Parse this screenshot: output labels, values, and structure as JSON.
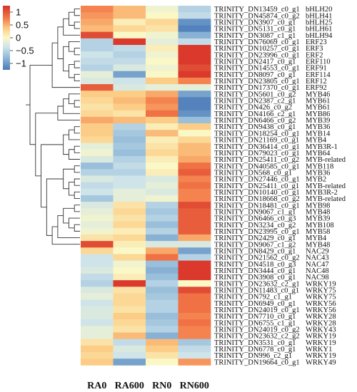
{
  "chart_data": {
    "type": "heatmap",
    "colorscale": [
      "#4a7ab8",
      "#94bcd9",
      "#cde3ea",
      "#fbf8c8",
      "#fccb83",
      "#f37d4a",
      "#d73027"
    ],
    "legend": {
      "ticks": [
        "1",
        "0.5",
        "0",
        "−0.5",
        "−1"
      ],
      "min": -1.25,
      "max": 1.25
    },
    "columns": [
      "RA0",
      "RA600",
      "RN0",
      "RN600"
    ],
    "rows": [
      {
        "id": "TRINITY_DN13459_c0_g1",
        "gene": "bHLH20",
        "values": [
          0.8,
          0.5,
          -0.1,
          -0.6
        ]
      },
      {
        "id": "TRINITY_DN45874_c0_g2",
        "gene": "bHLH41",
        "values": [
          0.7,
          0.5,
          0.0,
          -0.5
        ]
      },
      {
        "id": "TRINITY_DN3907_c0_g1",
        "gene": "bHLH25",
        "values": [
          0.6,
          0.1,
          0.3,
          -1.1
        ]
      },
      {
        "id": "TRINITY_DN5131_c0_g1",
        "gene": "bHLH61",
        "values": [
          0.5,
          0.3,
          0.2,
          -1.2
        ]
      },
      {
        "id": "TRINITY_DN3087_c1_g1",
        "gene": "bHLH94",
        "values": [
          1.1,
          0.0,
          -0.1,
          -0.9
        ]
      },
      {
        "id": "TRINITY_DN76069_c0_g1",
        "gene": "ERF23",
        "values": [
          -0.6,
          1.2,
          -0.2,
          -0.5
        ]
      },
      {
        "id": "TRINITY_DN10257_c0_g1",
        "gene": "ERF3",
        "values": [
          -0.6,
          -0.5,
          0.1,
          1.2
        ]
      },
      {
        "id": "TRINITY_DN23996_c0_g1",
        "gene": "ERF2",
        "values": [
          -0.4,
          -0.6,
          -0.1,
          1.2
        ]
      },
      {
        "id": "TRINITY_DN2417_c0_g1",
        "gene": "ERF110",
        "values": [
          -0.5,
          -0.5,
          0.0,
          1.2
        ]
      },
      {
        "id": "TRINITY_DN14553_c0_g1",
        "gene": "ERF91",
        "values": [
          -0.6,
          -0.3,
          -0.1,
          1.1
        ]
      },
      {
        "id": "TRINITY_DN8097_c0_g1",
        "gene": "ERF114",
        "values": [
          -0.2,
          -1.0,
          0.0,
          1.2
        ]
      },
      {
        "id": "TRINITY_DN23805_c0_g1",
        "gene": "ERF12",
        "values": [
          -0.3,
          -0.4,
          0.4,
          0.8
        ]
      },
      {
        "id": "TRINITY_DN17370_c0_g1",
        "gene": "ERF92",
        "values": [
          1.0,
          -0.3,
          -0.2,
          -0.2
        ]
      },
      {
        "id": "TRINITY_DN5601_c0_g2",
        "gene": "MYB46",
        "values": [
          0.4,
          0.4,
          0.6,
          -1.0
        ]
      },
      {
        "id": "TRINITY_DN2387_c2_g1",
        "gene": "MYB61",
        "values": [
          0.3,
          0.5,
          0.8,
          -1.2
        ]
      },
      {
        "id": "TRINITY_DN426_c0_g2",
        "gene": "MYB61",
        "values": [
          0.2,
          0.4,
          0.7,
          -1.2
        ]
      },
      {
        "id": "TRINITY_DN4166_c2_g1",
        "gene": "MYB86",
        "values": [
          0.3,
          0.2,
          0.9,
          -1.1
        ]
      },
      {
        "id": "TRINITY_DN6466_c0_g2",
        "gene": "MYB39",
        "values": [
          0.6,
          0.5,
          0.4,
          -0.8
        ]
      },
      {
        "id": "TRINITY_DN9438_c0_g1",
        "gene": "MYB36",
        "values": [
          0.4,
          -0.6,
          0.1,
          0.4
        ]
      },
      {
        "id": "TRINITY_DN18254_c0_g1",
        "gene": "MYB14",
        "values": [
          0.4,
          -0.7,
          0.5,
          0.0
        ]
      },
      {
        "id": "TRINITY_DN21169_c0_g1",
        "gene": "MYB4",
        "values": [
          0.3,
          -0.8,
          0.1,
          0.3
        ]
      },
      {
        "id": "TRINITY_DN36414_c0_g1",
        "gene": "MYB3R-1",
        "values": [
          -0.2,
          -0.7,
          0.2,
          0.5
        ]
      },
      {
        "id": "TRINITY_DN79023_c0_g1",
        "gene": "MYB64",
        "values": [
          -0.1,
          -0.8,
          0.3,
          0.5
        ]
      },
      {
        "id": "TRINITY_DN25411_c0_g2",
        "gene": "MYB-related",
        "values": [
          -0.3,
          -0.6,
          0.1,
          0.6
        ]
      },
      {
        "id": "TRINITY_DN40585_c0_g1",
        "gene": "MYB118",
        "values": [
          -0.8,
          -0.5,
          0.0,
          0.9
        ]
      },
      {
        "id": "TRINITY_DN568_c0_g1",
        "gene": "MYB36",
        "values": [
          -0.6,
          -0.6,
          0.1,
          1.0
        ]
      },
      {
        "id": "TRINITY_DN27446_c0_g1",
        "gene": "MYB2",
        "values": [
          -0.3,
          -0.4,
          -0.3,
          0.8
        ]
      },
      {
        "id": "TRINITY_DN25411_c0_g1",
        "gene": "MYB-related",
        "values": [
          -0.5,
          -0.4,
          -0.2,
          0.9
        ]
      },
      {
        "id": "TRINITY_DN10140_c0_g1",
        "gene": "MYB3R-2",
        "values": [
          -0.4,
          -0.2,
          -0.3,
          0.8
        ]
      },
      {
        "id": "TRINITY_DN18668_c0_g2",
        "gene": "MYB-related",
        "values": [
          -0.7,
          -0.2,
          -0.1,
          0.8
        ]
      },
      {
        "id": "TRINITY_DN18481_c0_g1",
        "gene": "MYB98",
        "values": [
          -0.3,
          0.2,
          -0.6,
          1.1
        ]
      },
      {
        "id": "TRINITY_DN9067_c1_g1",
        "gene": "MYB48",
        "values": [
          -0.2,
          0.3,
          -0.7,
          1.0
        ]
      },
      {
        "id": "TRINITY_DN6466_c0_g3",
        "gene": "MYB39",
        "values": [
          -0.1,
          0.2,
          -0.6,
          1.0
        ]
      },
      {
        "id": "TRINITY_DN3234_c0_g2",
        "gene": "MYB108",
        "values": [
          -0.2,
          0.3,
          -0.8,
          1.0
        ]
      },
      {
        "id": "TRINITY_DN23995_c0_g1",
        "gene": "MYB58",
        "values": [
          -0.1,
          0.1,
          -0.6,
          1.0
        ]
      },
      {
        "id": "TRINITY_DN2429_c0_g1",
        "gene": "MYB4",
        "values": [
          0.2,
          0.3,
          -0.9,
          0.6
        ]
      },
      {
        "id": "TRINITY_DN9067_c1_g2",
        "gene": "MYB48",
        "values": [
          1.1,
          0.1,
          -0.3,
          -0.3
        ]
      },
      {
        "id": "TRINITY_DN8429_c0_g1",
        "gene": "NAC29",
        "values": [
          0.3,
          0.0,
          0.6,
          -1.0
        ]
      },
      {
        "id": "TRINITY_DN21562_c0_g2",
        "gene": "NAC43",
        "values": [
          -0.4,
          0.3,
          0.9,
          -0.6
        ]
      },
      {
        "id": "TRINITY_DN4518_c0_g3",
        "gene": "NAC47",
        "values": [
          -0.4,
          -0.1,
          -0.8,
          1.2
        ]
      },
      {
        "id": "TRINITY_DN3444_c0_g1",
        "gene": "NAC48",
        "values": [
          -0.3,
          0.0,
          -0.9,
          1.2
        ]
      },
      {
        "id": "TRINITY_DN3908_c0_g1",
        "gene": "NAC98",
        "values": [
          -0.5,
          0.1,
          -0.8,
          1.2
        ]
      },
      {
        "id": "TRINITY_DN23632_c2_g1",
        "gene": "WRKY19",
        "values": [
          -0.6,
          1.2,
          -0.6,
          0.0
        ]
      },
      {
        "id": "TRINITY_DN11483_c0_g1",
        "gene": "WRKY75",
        "values": [
          -0.3,
          0.2,
          -0.8,
          1.1
        ]
      },
      {
        "id": "TRINITY_DN792_c1_g1",
        "gene": "WRKY75",
        "values": [
          -0.2,
          0.3,
          -0.7,
          0.9
        ]
      },
      {
        "id": "TRINITY_DN6949_c0_g1",
        "gene": "WRKY56",
        "values": [
          -0.4,
          0.3,
          -0.6,
          0.9
        ]
      },
      {
        "id": "TRINITY_DN24019_c0_g1",
        "gene": "WRKY56",
        "values": [
          -0.3,
          0.2,
          -0.6,
          0.9
        ]
      },
      {
        "id": "TRINITY_DN7710_c0_g1",
        "gene": "WRKY28",
        "values": [
          -0.3,
          0.4,
          -0.8,
          0.8
        ]
      },
      {
        "id": "TRINITY_DN6755_c1_g1",
        "gene": "WRKY28",
        "values": [
          -0.4,
          0.3,
          -0.7,
          0.9
        ]
      },
      {
        "id": "TRINITY_DN24019_c0_g2",
        "gene": "WRKY43",
        "values": [
          -0.2,
          0.2,
          -0.6,
          0.8
        ]
      },
      {
        "id": "TRINITY_DN23632_c2_g2",
        "gene": "WRKY19",
        "values": [
          -0.2,
          0.5,
          -0.9,
          0.8
        ]
      },
      {
        "id": "TRINITY_DN3531_c0_g1",
        "gene": "WRKY19",
        "values": [
          0.2,
          -0.5,
          0.5,
          -0.7
        ]
      },
      {
        "id": "TRINITY_DN6778_c0_g1",
        "gene": "WRKY1",
        "values": [
          0.4,
          -0.3,
          0.4,
          -0.5
        ]
      },
      {
        "id": "TRINITY_DN996_c2_g1",
        "gene": "WRKY19",
        "values": [
          0.3,
          -0.4,
          0.2,
          -0.4
        ]
      },
      {
        "id": "TRINITY_DN19664_c0_g1",
        "gene": "WRKY49",
        "values": [
          0.4,
          -1.0,
          0.0,
          0.7
        ]
      }
    ]
  }
}
